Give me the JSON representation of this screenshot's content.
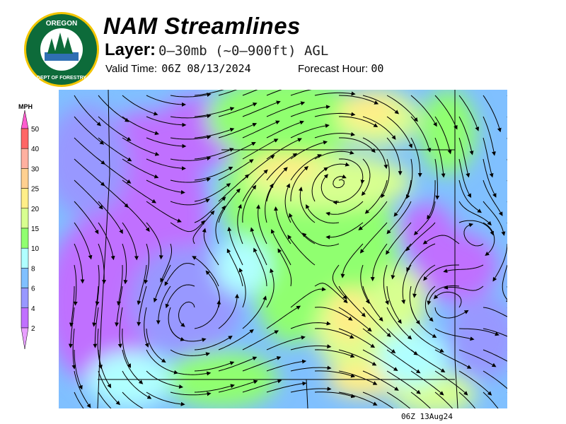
{
  "header": {
    "title": "NAM Streamlines",
    "layer_label": "Layer:",
    "layer_value": "0–30mb (~0–900ft) AGL",
    "valid_label": "Valid Time:",
    "valid_value": "06Z 08/13/2024",
    "forecast_label": "Forecast Hour:",
    "forecast_value": "00"
  },
  "logo": {
    "text_top": "OREGON",
    "text_bottom": "DEPARTMENT OF FORESTRY"
  },
  "legend": {
    "unit": "MPH",
    "ticks": [
      "50",
      "40",
      "30",
      "25",
      "20",
      "15",
      "10",
      "8",
      "6",
      "4",
      "2"
    ],
    "colors": [
      "#ff5ccf",
      "#ff6666",
      "#ffb0a0",
      "#ffd090",
      "#ffee88",
      "#d8ff90",
      "#90ff70",
      "#b0ffff",
      "#80c0ff",
      "#9898ff",
      "#c070ff",
      "#e8a0ff"
    ]
  },
  "map": {
    "timestamp": "06Z 13Aug24"
  }
}
